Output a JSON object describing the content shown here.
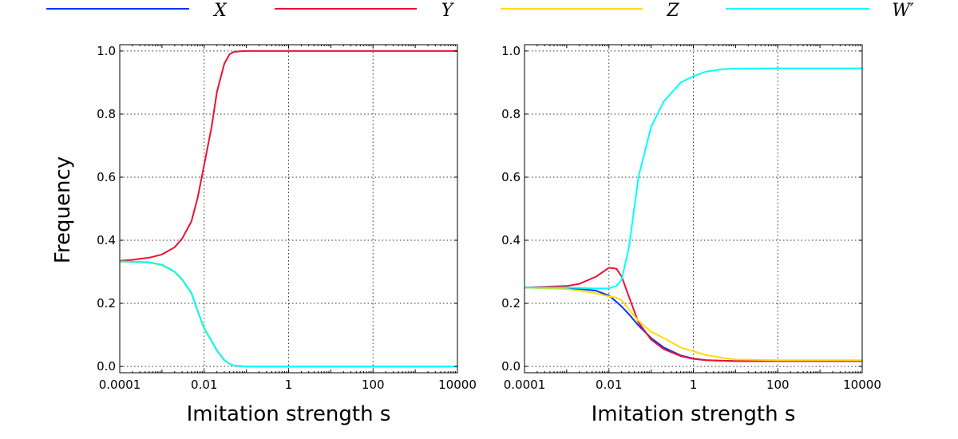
{
  "legend": [
    {
      "name": "X",
      "color": "#0033ff"
    },
    {
      "name": "Y",
      "color": "#ee1133"
    },
    {
      "name": "Z",
      "color": "#ffdd00"
    },
    {
      "name": "W′",
      "color": "#00ffff"
    }
  ],
  "y_shared_label": "Frequency",
  "chart_data": [
    {
      "type": "line",
      "xlabel": "Imitation strength s",
      "ylabel": "Frequency",
      "xscale": "log",
      "xlim": [
        0.0001,
        10000
      ],
      "ylim": [
        -0.02,
        1.02
      ],
      "xticks": [
        0.0001,
        0.01,
        1,
        100,
        10000
      ],
      "xtick_labels": [
        "0.0001",
        "0.01",
        "1",
        "100",
        "10000"
      ],
      "yticks": [
        0.0,
        0.2,
        0.4,
        0.6,
        0.8,
        1.0
      ],
      "ytick_labels": [
        "0.0",
        "0.2",
        "0.4",
        "0.6",
        "0.8",
        "1.0"
      ],
      "grid": true,
      "x": [
        0.0001,
        0.0002,
        0.0005,
        0.001,
        0.002,
        0.003,
        0.005,
        0.007,
        0.01,
        0.015,
        0.02,
        0.03,
        0.04,
        0.05,
        0.07,
        0.1,
        1,
        100,
        10000
      ],
      "series": [
        {
          "name": "X",
          "color": "#0033ff",
          "values": [
            0.333,
            0.332,
            0.33,
            0.322,
            0.3,
            0.275,
            0.232,
            0.175,
            0.12,
            0.08,
            0.05,
            0.02,
            0.008,
            0.003,
            0.001,
            0.0,
            0.0,
            0.0,
            0.0
          ]
        },
        {
          "name": "Y",
          "color": "#ee1133",
          "values": [
            0.335,
            0.338,
            0.345,
            0.355,
            0.378,
            0.405,
            0.46,
            0.535,
            0.64,
            0.76,
            0.87,
            0.96,
            0.99,
            0.997,
            0.999,
            1.0,
            1.0,
            1.0,
            1.0
          ]
        },
        {
          "name": "Z",
          "color": "#ffdd00",
          "values": [
            0.332,
            0.331,
            0.329,
            0.321,
            0.299,
            0.274,
            0.231,
            0.174,
            0.119,
            0.079,
            0.049,
            0.019,
            0.008,
            0.003,
            0.001,
            0.0,
            0.0,
            0.0,
            0.0
          ]
        },
        {
          "name": "W′",
          "color": "#00ffff",
          "values": [
            0.333,
            0.332,
            0.33,
            0.322,
            0.3,
            0.276,
            0.233,
            0.176,
            0.121,
            0.081,
            0.05,
            0.02,
            0.008,
            0.003,
            0.001,
            0.0,
            0.0,
            0.0,
            0.0
          ]
        }
      ]
    },
    {
      "type": "line",
      "xlabel": "Imitation strength s",
      "ylabel": "",
      "xscale": "log",
      "xlim": [
        0.0001,
        10000
      ],
      "ylim": [
        -0.02,
        1.02
      ],
      "xticks": [
        0.0001,
        0.01,
        1,
        100,
        10000
      ],
      "xtick_labels": [
        "0.0001",
        "0.01",
        "1",
        "100",
        "10000"
      ],
      "yticks": [
        0.0,
        0.2,
        0.4,
        0.6,
        0.8,
        1.0
      ],
      "ytick_labels": [
        "0.0",
        "0.2",
        "0.4",
        "0.6",
        "0.8",
        "1.0"
      ],
      "grid": true,
      "x": [
        0.0001,
        0.001,
        0.002,
        0.005,
        0.01,
        0.015,
        0.02,
        0.03,
        0.05,
        0.1,
        0.2,
        0.5,
        1,
        2,
        5,
        10,
        100,
        10000
      ],
      "series": [
        {
          "name": "X",
          "color": "#0033ff",
          "values": [
            0.25,
            0.248,
            0.246,
            0.24,
            0.225,
            0.205,
            0.19,
            0.165,
            0.13,
            0.09,
            0.06,
            0.035,
            0.025,
            0.02,
            0.018,
            0.017,
            0.017,
            0.017
          ]
        },
        {
          "name": "Y",
          "color": "#ee1133",
          "values": [
            0.25,
            0.255,
            0.262,
            0.285,
            0.313,
            0.31,
            0.285,
            0.22,
            0.14,
            0.085,
            0.055,
            0.033,
            0.024,
            0.02,
            0.018,
            0.017,
            0.017,
            0.017
          ]
        },
        {
          "name": "Z",
          "color": "#ffdd00",
          "values": [
            0.25,
            0.245,
            0.24,
            0.232,
            0.222,
            0.218,
            0.21,
            0.18,
            0.145,
            0.11,
            0.09,
            0.06,
            0.048,
            0.036,
            0.027,
            0.022,
            0.02,
            0.02
          ]
        },
        {
          "name": "W′",
          "color": "#00ffff",
          "values": [
            0.25,
            0.25,
            0.249,
            0.247,
            0.248,
            0.255,
            0.275,
            0.38,
            0.6,
            0.76,
            0.84,
            0.9,
            0.92,
            0.935,
            0.942,
            0.944,
            0.945,
            0.945
          ]
        }
      ]
    }
  ]
}
